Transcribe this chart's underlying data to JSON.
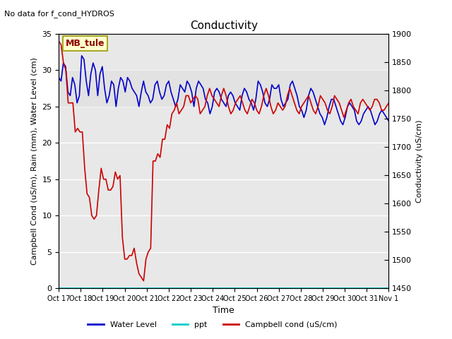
{
  "title": "Conductivity",
  "top_left_text": "No data for f_cond_HYDROS",
  "xlabel": "Time",
  "ylabel_left": "Campbell Cond (uS/m), Rain (mm), Water Level (cm)",
  "ylabel_right": "Conductivity (uS/cm)",
  "ylim_left": [
    0,
    35
  ],
  "ylim_right": [
    1450,
    1900
  ],
  "annotation_box": "MB_tule",
  "background_color": "#ffffff",
  "plot_bg_color": "#e8e8e8",
  "grid_color": "#ffffff",
  "xtick_labels": [
    "Oct 17",
    "Oct 18",
    "Oct 19",
    "Oct 20",
    "Oct 21",
    "Oct 22",
    "Oct 23",
    "Oct 24",
    "Oct 25",
    "Oct 26",
    "Oct 27",
    "Oct 28",
    "Oct 29",
    "Oct 30",
    "Oct 31",
    "Nov 1"
  ],
  "legend_entries": [
    "Water Level",
    "ppt",
    "Campbell cond (uS/cm)"
  ],
  "legend_colors": [
    "#0000cc",
    "#00cccc",
    "#cc0000"
  ],
  "water_level": [
    29.0,
    28.5,
    31.0,
    30.5,
    27.0,
    26.5,
    29.0,
    28.0,
    25.5,
    26.5,
    32.0,
    31.5,
    28.5,
    26.5,
    29.5,
    31.0,
    30.0,
    26.5,
    29.5,
    30.5,
    27.5,
    25.5,
    26.5,
    28.5,
    28.0,
    25.0,
    27.5,
    29.0,
    28.5,
    27.0,
    29.0,
    28.5,
    27.5,
    27.0,
    26.5,
    25.0,
    27.0,
    28.5,
    27.0,
    26.5,
    25.5,
    26.0,
    28.0,
    28.5,
    27.0,
    26.0,
    26.5,
    28.0,
    28.5,
    27.0,
    26.0,
    25.0,
    26.0,
    28.0,
    27.5,
    27.0,
    28.5,
    28.0,
    27.0,
    25.0,
    27.5,
    28.5,
    28.0,
    27.5,
    26.0,
    25.5,
    24.0,
    25.0,
    27.0,
    27.5,
    27.0,
    26.0,
    25.5,
    25.0,
    26.5,
    27.0,
    26.5,
    25.5,
    25.0,
    24.5,
    26.5,
    27.5,
    27.0,
    26.0,
    25.5,
    24.5,
    26.0,
    28.5,
    28.0,
    27.0,
    25.5,
    25.0,
    26.0,
    28.0,
    27.5,
    27.5,
    28.0,
    26.0,
    25.0,
    25.5,
    26.0,
    28.0,
    28.5,
    27.5,
    26.5,
    25.0,
    24.5,
    23.5,
    24.5,
    26.5,
    27.5,
    27.0,
    26.0,
    25.0,
    24.0,
    23.5,
    22.5,
    23.5,
    25.0,
    26.0,
    26.0,
    25.0,
    24.0,
    23.0,
    22.5,
    23.5,
    25.0,
    25.5,
    25.0,
    24.5,
    23.0,
    22.5,
    23.0,
    24.0,
    24.5,
    25.0,
    24.5,
    23.5,
    22.5,
    23.0,
    24.0,
    24.5,
    24.0,
    23.5,
    23.0
  ],
  "campbell_cond_left": [
    34.0,
    33.5,
    31.0,
    30.0,
    25.5,
    25.5,
    25.5,
    21.5,
    22.0,
    21.5,
    21.5,
    16.5,
    13.0,
    12.5,
    10.0,
    9.5,
    10.0,
    13.5,
    16.5,
    15.0,
    15.0,
    13.5,
    13.5,
    14.0,
    16.0,
    15.0,
    15.5,
    7.0,
    4.0,
    4.0,
    4.5,
    4.5,
    5.5,
    3.5,
    2.0,
    1.5,
    1.0,
    4.0,
    5.0,
    5.5,
    17.5,
    17.5,
    18.5,
    18.0,
    20.5,
    20.5,
    22.5,
    22.0,
    24.0,
    24.5,
    25.5,
    24.0,
    24.5,
    25.0,
    26.5,
    26.5,
    25.5,
    26.0,
    26.5,
    26.0,
    24.0,
    24.5,
    25.0,
    26.5,
    27.5,
    26.5,
    26.0,
    25.5,
    25.0,
    26.5,
    27.5,
    26.5,
    25.0,
    24.0,
    24.5,
    25.5,
    26.0,
    26.5,
    25.5,
    24.5,
    24.0,
    25.0,
    26.0,
    25.5,
    24.5,
    24.0,
    25.0,
    26.5,
    27.5,
    26.5,
    25.0,
    24.0,
    24.5,
    25.5,
    25.0,
    24.5,
    25.0,
    26.5,
    27.5,
    26.5,
    25.5,
    24.5,
    24.0,
    25.0,
    25.5,
    26.0,
    26.5,
    25.5,
    24.5,
    24.0,
    25.0,
    26.5,
    26.0,
    25.5,
    24.5,
    24.0,
    25.0,
    26.5,
    26.0,
    25.5,
    24.5,
    23.5,
    24.5,
    25.5,
    26.0,
    25.0,
    24.5,
    24.0,
    25.5,
    26.0,
    25.5,
    25.0,
    24.5,
    25.0,
    26.0,
    26.0,
    25.5,
    24.5,
    24.5,
    25.0,
    25.5
  ],
  "ppt": [
    0,
    0,
    0,
    0,
    0,
    0,
    0,
    0,
    0,
    0,
    0,
    0,
    0,
    0,
    0,
    0,
    0,
    0,
    0,
    0,
    0,
    0,
    0,
    0,
    0,
    0,
    0,
    0,
    0,
    0,
    0,
    0,
    0,
    0,
    0,
    0,
    0,
    0,
    0,
    0,
    0,
    0,
    0,
    0,
    0,
    0,
    0,
    0,
    0,
    0,
    0,
    0,
    0,
    0,
    0,
    0,
    0,
    0,
    0,
    0,
    0,
    0,
    0,
    0,
    0,
    0,
    0,
    0,
    0,
    0,
    0,
    0,
    0,
    0,
    0,
    0,
    0,
    0,
    0,
    0,
    0,
    0,
    0,
    0,
    0,
    0,
    0,
    0,
    0,
    0,
    0,
    0,
    0,
    0,
    0,
    0,
    0,
    0,
    0,
    0,
    0,
    0,
    0,
    0,
    0,
    0,
    0,
    0,
    0,
    0,
    0,
    0,
    0,
    0,
    0,
    0,
    0,
    0,
    0,
    0,
    0,
    0,
    0,
    0,
    0,
    0,
    0,
    0,
    0,
    0,
    0,
    0,
    0,
    0,
    0,
    0,
    0,
    0,
    0
  ],
  "shaded_band": [
    25,
    30
  ],
  "yticks_left": [
    0,
    5,
    10,
    15,
    20,
    25,
    30,
    35
  ],
  "yticks_right": [
    1450,
    1500,
    1550,
    1600,
    1650,
    1700,
    1750,
    1800,
    1850,
    1900
  ]
}
